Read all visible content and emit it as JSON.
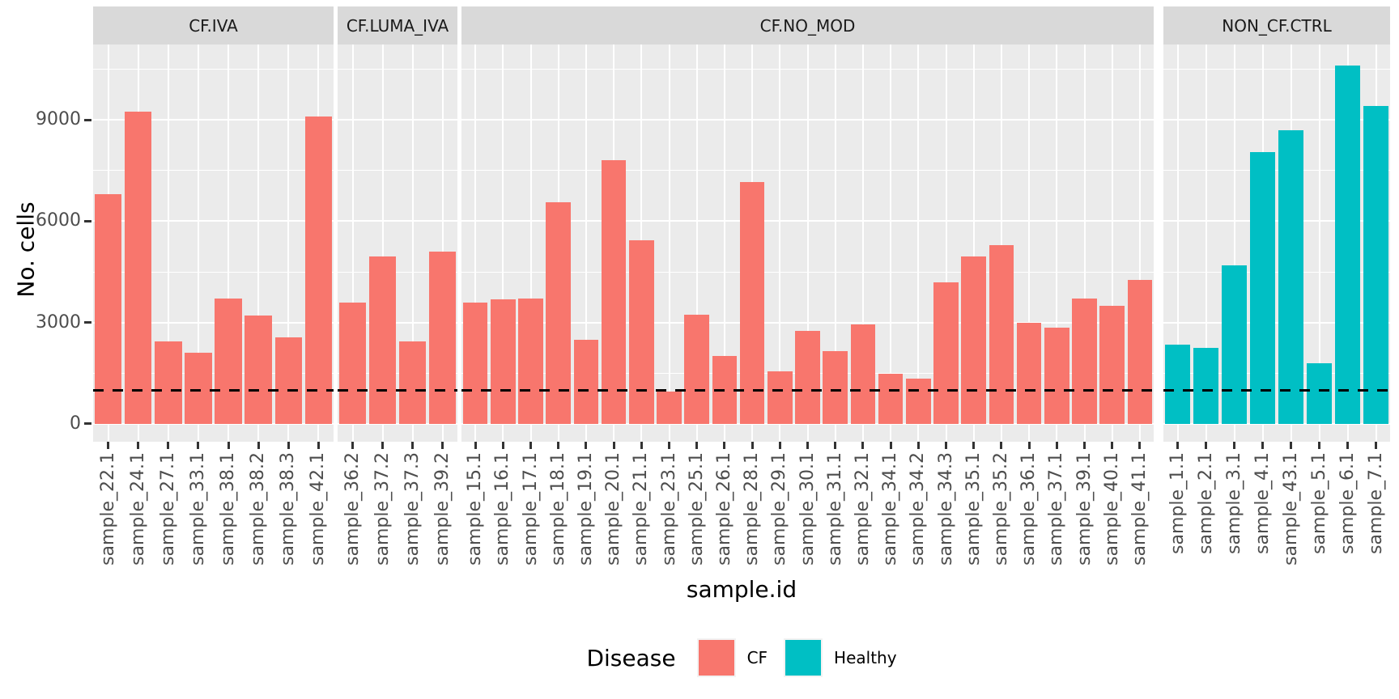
{
  "chart_data": {
    "type": "bar",
    "title": "",
    "xlabel": "sample.id",
    "ylabel": "No. cells",
    "grid": true,
    "y_ticks": [
      0,
      3000,
      6000,
      9000
    ],
    "y_minor_ticks": [
      1500,
      4500,
      7500,
      10500
    ],
    "ylim": [
      -530,
      11230
    ],
    "hline": {
      "value": 1000,
      "style": "dashed",
      "color": "#000000"
    },
    "colors": {
      "CF": "#F8766D",
      "Healthy": "#00BFC4"
    },
    "legend": {
      "title": "Disease",
      "position": "bottom",
      "entries": [
        {
          "label": "CF",
          "color": "#F8766D"
        },
        {
          "label": "Healthy",
          "color": "#00BFC4"
        }
      ]
    },
    "facets": [
      {
        "label": "CF.IVA",
        "group": "CF",
        "categories": [
          "sample_22.1",
          "sample_24.1",
          "sample_27.1",
          "sample_33.1",
          "sample_38.1",
          "sample_38.2",
          "sample_38.3",
          "sample_42.1"
        ],
        "values": [
          6800,
          9250,
          2450,
          2100,
          3700,
          3200,
          2550,
          9100
        ]
      },
      {
        "label": "CF.LUMA_IVA",
        "group": "CF",
        "categories": [
          "sample_36.2",
          "sample_37.2",
          "sample_37.3",
          "sample_39.2"
        ],
        "values": [
          3600,
          4950,
          2450,
          5100
        ]
      },
      {
        "label": "CF.NO_MOD",
        "group": "CF",
        "categories": [
          "sample_15.1",
          "sample_16.1",
          "sample_17.1",
          "sample_18.1",
          "sample_19.1",
          "sample_20.1",
          "sample_21.1",
          "sample_23.1",
          "sample_25.1",
          "sample_26.1",
          "sample_28.1",
          "sample_29.1",
          "sample_30.1",
          "sample_31.1",
          "sample_32.1",
          "sample_34.1",
          "sample_34.2",
          "sample_34.3",
          "sample_35.1",
          "sample_35.2",
          "sample_36.1",
          "sample_37.1",
          "sample_39.1",
          "sample_40.1",
          "sample_41.1"
        ],
        "values": [
          3600,
          3680,
          3720,
          6550,
          2500,
          7800,
          5430,
          960,
          3230,
          2000,
          7150,
          1550,
          2750,
          2150,
          2950,
          1480,
          1350,
          4200,
          4950,
          5300,
          2980,
          2850,
          3700,
          3500,
          4250
        ]
      },
      {
        "label": "NON_CF.CTRL",
        "group": "Healthy",
        "categories": [
          "sample_1.1",
          "sample_2.1",
          "sample_3.1",
          "sample_4.1",
          "sample_43.1",
          "sample_5.1",
          "sample_6.1",
          "sample_7.1"
        ],
        "values": [
          2350,
          2250,
          4680,
          8050,
          8700,
          1800,
          10600,
          9400
        ]
      }
    ]
  }
}
